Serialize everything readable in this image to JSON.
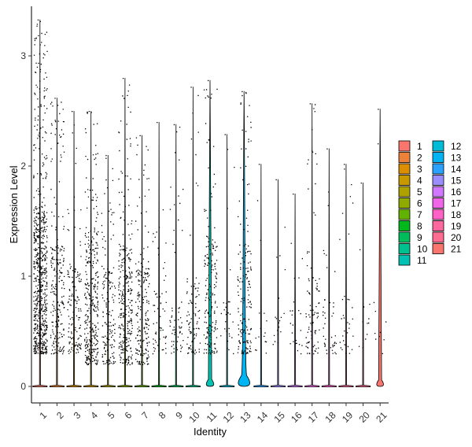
{
  "chart_data": {
    "type": "violin",
    "xlabel": "Identity",
    "ylabel": "Expression Level",
    "categories": [
      "1",
      "2",
      "3",
      "4",
      "5",
      "6",
      "7",
      "8",
      "9",
      "10",
      "11",
      "12",
      "13",
      "14",
      "15",
      "16",
      "17",
      "18",
      "19",
      "20",
      "21"
    ],
    "colors": [
      "#F8766D",
      "#EC8239",
      "#DB8E00",
      "#C79800",
      "#AEA200",
      "#8FAA00",
      "#64B200",
      "#00B81B",
      "#00BD5C",
      "#00C08D",
      "#00C1B2",
      "#00BCD6",
      "#00B3F2",
      "#29A3FF",
      "#9C8DFF",
      "#D277FF",
      "#F166E8",
      "#FF61C7",
      "#FF689E",
      "#FF6C91",
      "#F8766D"
    ],
    "max_values": [
      3.33,
      2.62,
      2.5,
      2.5,
      2.1,
      2.8,
      2.28,
      2.4,
      2.38,
      2.72,
      2.78,
      2.29,
      2.68,
      2.02,
      1.88,
      1.75,
      2.57,
      2.16,
      2.02,
      1.85,
      2.52
    ],
    "dense_range": [
      [
        0.3,
        1.6
      ],
      [
        0.3,
        1.3
      ],
      [
        0.3,
        1.1
      ],
      [
        0.2,
        1.4
      ],
      [
        0.2,
        1.1
      ],
      [
        0.2,
        1.3
      ],
      [
        0.2,
        1.1
      ],
      [
        0.3,
        0.9
      ],
      [
        0.3,
        0.8
      ],
      [
        0.3,
        1.0
      ],
      [
        0.3,
        1.4
      ],
      [
        0.3,
        0.8
      ],
      [
        0.3,
        1.3
      ],
      [
        0.3,
        0.7
      ],
      [
        0.3,
        0.7
      ],
      [
        0.3,
        0.7
      ],
      [
        0.3,
        1.0
      ],
      [
        0.3,
        0.8
      ],
      [
        0.3,
        0.8
      ],
      [
        0.3,
        0.8
      ],
      [
        0.3,
        0.8
      ]
    ],
    "point_counts": [
      700,
      220,
      140,
      330,
      170,
      300,
      200,
      60,
      60,
      90,
      180,
      30,
      170,
      15,
      20,
      25,
      90,
      45,
      35,
      12,
      10
    ],
    "violin_bulge": {
      "11": 0.55,
      "13": 0.85,
      "21": 0.5
    },
    "ylim": [
      -0.15,
      3.45
    ],
    "yticks": [
      0,
      1,
      2,
      3
    ],
    "legend": {
      "position": "right",
      "columns": [
        [
          "1",
          "2",
          "3",
          "4",
          "5",
          "6",
          "7",
          "8",
          "9",
          "10",
          "11"
        ],
        [
          "12",
          "13",
          "14",
          "15",
          "16",
          "17",
          "18",
          "19",
          "20",
          "21"
        ]
      ]
    }
  }
}
